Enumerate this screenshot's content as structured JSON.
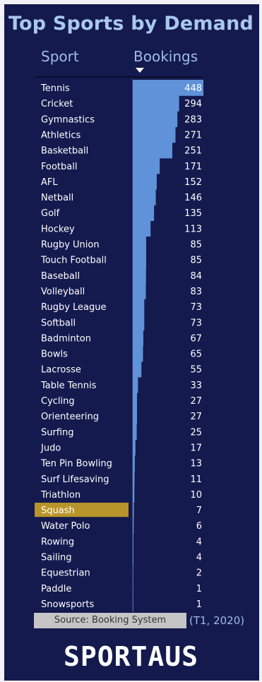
{
  "colors": {
    "background": "#141a4e",
    "bar": "#5f92d8",
    "highlight": "#b8952a",
    "text": "#ffffff",
    "header_text": "#a9c8f0",
    "source_box": "#c5c5c5"
  },
  "header": {
    "title": "Top Sports by Demand",
    "col_sport": "Sport",
    "col_bookings": "Bookings",
    "sort_icon": "sort-descending-icon"
  },
  "chart_data": {
    "type": "bar",
    "orientation": "horizontal",
    "title": "Top Sports by Demand",
    "xlabel": "Bookings",
    "ylabel": "Sport",
    "xlim": [
      0,
      448
    ],
    "highlight": "Squash",
    "categories": [
      "Tennis",
      "Cricket",
      "Gymnastics",
      "Athletics",
      "Basketball",
      "Football",
      "AFL",
      "Netball",
      "Golf",
      "Hockey",
      "Rugby Union",
      "Touch Football",
      "Baseball",
      "Volleyball",
      "Rugby League",
      "Softball",
      "Badminton",
      "Bowls",
      "Lacrosse",
      "Table Tennis",
      "Cycling",
      "Orienteering",
      "Surfing",
      "Judo",
      "Ten Pin Bowling",
      "Surf Lifesaving",
      "Triathlon",
      "Squash",
      "Water Polo",
      "Rowing",
      "Sailing",
      "Equestrian",
      "Paddle",
      "Snowsports"
    ],
    "values": [
      448,
      294,
      283,
      271,
      251,
      171,
      152,
      146,
      135,
      113,
      85,
      85,
      84,
      83,
      73,
      73,
      67,
      65,
      55,
      33,
      27,
      27,
      25,
      17,
      13,
      11,
      10,
      7,
      6,
      4,
      4,
      2,
      1,
      1
    ]
  },
  "footer": {
    "source": "Source: Booking System",
    "period": "(T1, 2020)",
    "brand": "SPORTAUS"
  }
}
